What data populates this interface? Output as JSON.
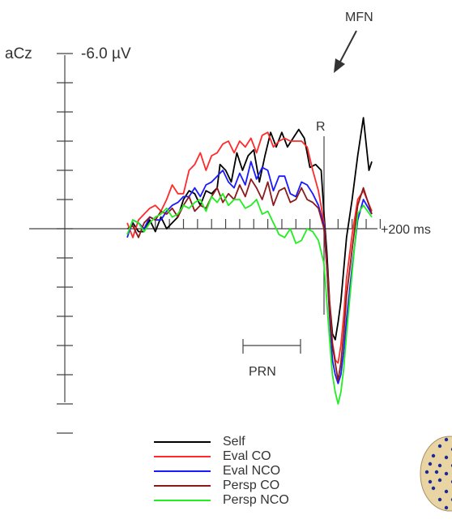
{
  "chart_data": {
    "type": "line",
    "channel_label": "aCz",
    "y_scale_label": "-6.0 µV",
    "x_end_label": "+200 ms",
    "annotations": {
      "mfn": "MFN",
      "response": "R",
      "prn": "PRN"
    },
    "x_axis": {
      "unit": "ms",
      "tick_step": 50,
      "response_at": 0,
      "range": [
        -700,
        200
      ]
    },
    "y_axis": {
      "unit": "µV",
      "negative_up": true,
      "range": [
        -6.0,
        7.0
      ],
      "tick_step": 1.0
    },
    "prn_window": [
      -200,
      -50
    ],
    "series": [
      {
        "name": "Self",
        "color": "#000000",
        "x": [
          -700,
          -680,
          -660,
          -640,
          -620,
          -600,
          -580,
          -560,
          -540,
          -520,
          -500,
          -480,
          -460,
          -440,
          -420,
          -400,
          -380,
          -370,
          -350,
          -330,
          -310,
          -290,
          -270,
          -250,
          -230,
          -210,
          -190,
          -170,
          -150,
          -130,
          -110,
          -90,
          -70,
          -50,
          -30,
          -10,
          0,
          10,
          20,
          30,
          40,
          50,
          60,
          70,
          80,
          100,
          120,
          140,
          160,
          170
        ],
        "y": [
          0.2,
          -0.2,
          0.1,
          0.1,
          -0.3,
          0.1,
          -0.4,
          0.0,
          -0.2,
          -0.4,
          -1.0,
          -1.3,
          -1.2,
          -0.8,
          -1.3,
          -1.2,
          -1.4,
          -2.2,
          -2.0,
          -1.6,
          -2.6,
          -2.0,
          -2.5,
          -2.7,
          -1.6,
          -2.5,
          -3.3,
          -2.8,
          -3.3,
          -2.8,
          -3.1,
          -3.4,
          -3.1,
          -2.1,
          -2.2,
          -2.0,
          -0.5,
          0.8,
          2.5,
          3.6,
          3.8,
          3.2,
          2.5,
          1.4,
          0.3,
          -1.0,
          -2.5,
          -3.8,
          -2.0,
          -2.3
        ]
      },
      {
        "name": "Eval CO",
        "color": "#ff2a2a",
        "x": [
          -700,
          -680,
          -660,
          -640,
          -620,
          -600,
          -580,
          -560,
          -540,
          -520,
          -500,
          -480,
          -460,
          -440,
          -420,
          -400,
          -380,
          -360,
          -340,
          -320,
          -300,
          -280,
          -260,
          -240,
          -220,
          -200,
          -180,
          -160,
          -140,
          -120,
          -100,
          -80,
          -60,
          -40,
          -20,
          0,
          10,
          20,
          30,
          40,
          50,
          60,
          70,
          80,
          100,
          120,
          140,
          170
        ],
        "y": [
          -0.2,
          0.3,
          -0.3,
          -0.5,
          -0.7,
          -0.8,
          -0.6,
          -1.0,
          -1.5,
          -1.2,
          -1.2,
          -2.0,
          -2.2,
          -2.6,
          -2.0,
          -2.5,
          -2.6,
          -2.9,
          -3.0,
          -2.6,
          -3.0,
          -2.8,
          -3.1,
          -2.6,
          -3.2,
          -3.3,
          -2.8,
          -3.0,
          -3.1,
          -3.0,
          -3.0,
          -3.0,
          -2.8,
          -2.0,
          -1.3,
          -0.2,
          1.2,
          2.6,
          3.9,
          4.5,
          4.6,
          4.0,
          3.0,
          1.7,
          0.2,
          -1.0,
          -1.3,
          -0.6
        ]
      },
      {
        "name": "Eval NCO",
        "color": "#1a1aff",
        "x": [
          -700,
          -680,
          -660,
          -640,
          -620,
          -600,
          -580,
          -560,
          -540,
          -520,
          -500,
          -480,
          -460,
          -440,
          -420,
          -400,
          -380,
          -360,
          -340,
          -320,
          -300,
          -280,
          -260,
          -240,
          -220,
          -200,
          -180,
          -160,
          -140,
          -120,
          -100,
          -80,
          -60,
          -40,
          -20,
          0,
          10,
          20,
          30,
          40,
          50,
          60,
          70,
          80,
          100,
          120,
          140,
          170
        ],
        "y": [
          0.3,
          -0.3,
          -0.2,
          0.0,
          -0.4,
          -0.3,
          -0.3,
          -0.6,
          -0.8,
          -0.9,
          -1.1,
          -1.1,
          -1.4,
          -1.1,
          -1.5,
          -1.6,
          -1.8,
          -2.0,
          -1.6,
          -1.4,
          -1.9,
          -1.5,
          -2.3,
          -1.7,
          -2.1,
          -2.0,
          -1.3,
          -1.8,
          -1.8,
          -1.2,
          -1.1,
          -1.6,
          -1.5,
          -1.2,
          -0.8,
          -0.1,
          1.3,
          3.0,
          4.5,
          5.0,
          5.3,
          5.0,
          4.2,
          3.1,
          1.3,
          -0.3,
          -1.0,
          -0.5
        ]
      },
      {
        "name": "Persp CO",
        "color": "#8b1a1a",
        "x": [
          -700,
          -680,
          -660,
          -640,
          -620,
          -600,
          -580,
          -560,
          -540,
          -520,
          -500,
          -480,
          -460,
          -440,
          -420,
          -400,
          -380,
          -360,
          -340,
          -320,
          -300,
          -280,
          -260,
          -240,
          -220,
          -200,
          -180,
          -160,
          -140,
          -120,
          -100,
          -80,
          -60,
          -40,
          -20,
          0,
          10,
          20,
          30,
          40,
          50,
          60,
          70,
          80,
          100,
          120,
          140,
          170
        ],
        "y": [
          0.0,
          -0.1,
          0.3,
          -0.2,
          -0.4,
          -0.3,
          -0.6,
          -0.5,
          -0.7,
          -0.4,
          -0.8,
          -1.1,
          -0.6,
          -0.8,
          -0.7,
          -1.1,
          -1.4,
          -0.9,
          -1.2,
          -1.0,
          -1.5,
          -1.1,
          -1.7,
          -1.4,
          -1.0,
          -1.6,
          -0.8,
          -1.3,
          -1.4,
          -0.9,
          -1.0,
          -1.4,
          -1.0,
          -0.9,
          -0.7,
          0.0,
          1.3,
          2.8,
          4.0,
          4.6,
          5.2,
          4.6,
          3.6,
          2.3,
          0.7,
          -0.8,
          -1.4,
          -0.5
        ]
      },
      {
        "name": "Persp NCO",
        "color": "#22ee22",
        "x": [
          -700,
          -680,
          -660,
          -640,
          -620,
          -600,
          -580,
          -560,
          -540,
          -520,
          -500,
          -480,
          -460,
          -440,
          -420,
          -400,
          -380,
          -360,
          -340,
          -320,
          -300,
          -280,
          -260,
          -240,
          -220,
          -200,
          -180,
          -160,
          -140,
          -120,
          -100,
          -80,
          -60,
          -40,
          -20,
          0,
          10,
          20,
          30,
          40,
          50,
          60,
          70,
          80,
          100,
          120,
          140,
          170
        ],
        "y": [
          0.2,
          -0.3,
          -0.2,
          0.1,
          -0.2,
          -0.4,
          -0.5,
          -0.7,
          -0.4,
          -0.5,
          -0.8,
          -0.7,
          -0.9,
          -1.0,
          -0.6,
          -1.1,
          -0.9,
          -1.2,
          -0.8,
          -1.0,
          -1.0,
          -0.7,
          -0.8,
          -1.0,
          -0.5,
          -0.6,
          -0.2,
          0.2,
          0.3,
          0.0,
          0.5,
          0.4,
          0.0,
          0.1,
          0.4,
          1.2,
          2.5,
          3.8,
          5.0,
          5.6,
          6.0,
          5.6,
          4.8,
          3.6,
          1.5,
          -0.5,
          -0.8,
          -0.4
        ]
      }
    ]
  }
}
